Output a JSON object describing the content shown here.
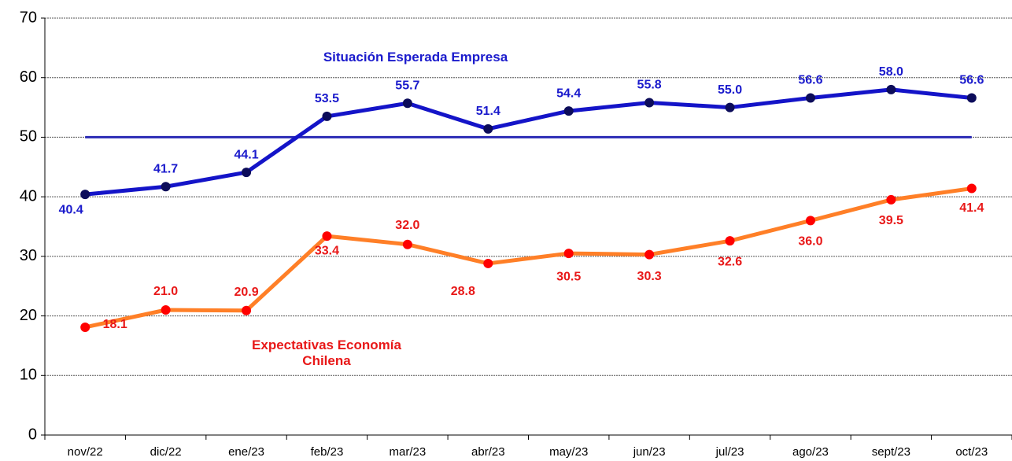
{
  "chart_data": {
    "type": "line",
    "categories": [
      "nov/22",
      "dic/22",
      "ene/23",
      "feb/23",
      "mar/23",
      "abr/23",
      "may/23",
      "jun/23",
      "jul/23",
      "ago/23",
      "sept/23",
      "oct/23"
    ],
    "series": [
      {
        "name": "Situación Esperada Empresa",
        "color": "#1414c8",
        "marker_color": "#0c0c5a",
        "label_color": "#1a1acc",
        "values": [
          40.4,
          41.7,
          44.1,
          53.5,
          55.7,
          51.4,
          54.4,
          55.8,
          55.0,
          56.6,
          58.0,
          56.6
        ],
        "value_labels": [
          "40.4",
          "41.7",
          "44.1",
          "53.5",
          "55.7",
          "51.4",
          "54.4",
          "55.8",
          "55.0",
          "56.6",
          "58.0",
          "56.6"
        ]
      },
      {
        "name": "Expectativas Economía Chilena",
        "color": "#ff7f27",
        "marker_color": "#ff0000",
        "label_color": "#e81818",
        "values": [
          18.1,
          21.0,
          20.9,
          33.4,
          32.0,
          28.8,
          30.5,
          30.3,
          32.6,
          36.0,
          39.5,
          41.4
        ],
        "value_labels": [
          "18.1",
          "21.0",
          "20.9",
          "33.4",
          "32.0",
          "28.8",
          "30.5",
          "30.3",
          "32.6",
          "36.0",
          "39.5",
          "41.4"
        ]
      }
    ],
    "reference_lines": [
      {
        "value": 50,
        "color": "#2a2ab4"
      }
    ],
    "ylim": [
      0,
      70
    ],
    "yticks": [
      0,
      10,
      20,
      30,
      40,
      50,
      60,
      70
    ],
    "grid": true
  }
}
